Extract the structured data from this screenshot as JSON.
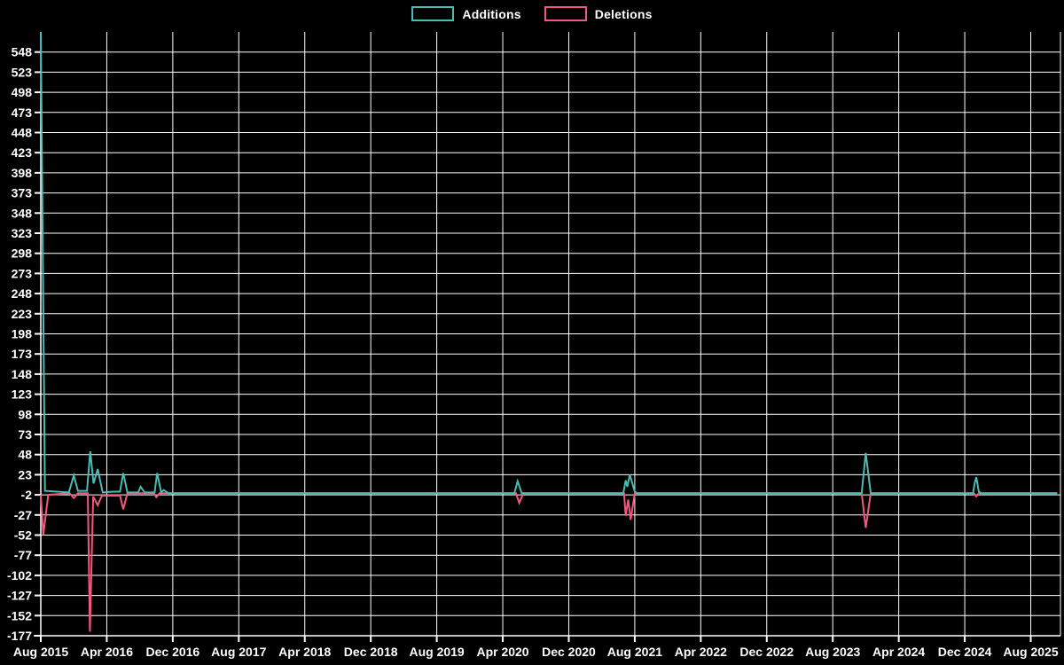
{
  "legend": {
    "items": [
      {
        "label": "Additions",
        "color": "#4BBCB4"
      },
      {
        "label": "Deletions",
        "color": "#F2587F"
      }
    ]
  },
  "colors": {
    "background": "#000000",
    "grid": "#ffffff",
    "axis_text": "#ffffff",
    "additions": "#4BBCB4",
    "deletions": "#F2587F"
  },
  "chart_data": {
    "type": "line",
    "title": "",
    "xlabel": "",
    "ylabel": "",
    "grid": true,
    "legend_position": "top-center",
    "y_axis": {
      "min": -177,
      "max": 573,
      "tick_step": 25,
      "tick_labels": [
        "548",
        "523",
        "498",
        "473",
        "448",
        "423",
        "398",
        "373",
        "348",
        "323",
        "298",
        "273",
        "248",
        "223",
        "198",
        "173",
        "148",
        "123",
        "98",
        "73",
        "48",
        "23",
        "-2",
        "-27",
        "-52",
        "-77",
        "-102",
        "-127",
        "-152",
        "-177"
      ],
      "tick_values": [
        548,
        523,
        498,
        473,
        448,
        423,
        398,
        373,
        348,
        323,
        298,
        273,
        248,
        223,
        198,
        173,
        148,
        123,
        98,
        73,
        48,
        23,
        -2,
        -27,
        -52,
        -77,
        -102,
        -127,
        -152,
        -177
      ]
    },
    "x_axis": {
      "tick_labels": [
        "Aug 2015",
        "Apr 2016",
        "Dec 2016",
        "Aug 2017",
        "Apr 2018",
        "Dec 2018",
        "Aug 2019",
        "Apr 2020",
        "Dec 2020",
        "Aug 2021",
        "Apr 2022",
        "Dec 2022",
        "Aug 2023",
        "Apr 2024",
        "Dec 2024",
        "Aug 2025"
      ],
      "months_per_tick": 8,
      "min_month": 0,
      "max_month": 123.6
    },
    "series": [
      {
        "name": "Additions",
        "color": "#4BBCB4",
        "points": [
          [
            0,
            573
          ],
          [
            0.5,
            3
          ],
          [
            3.4,
            1
          ],
          [
            4,
            22
          ],
          [
            4.5,
            3
          ],
          [
            5.6,
            3
          ],
          [
            6,
            52
          ],
          [
            6.4,
            12
          ],
          [
            6.9,
            30
          ],
          [
            7.5,
            1
          ],
          [
            8.8,
            2
          ],
          [
            9.6,
            2
          ],
          [
            10,
            25
          ],
          [
            10.5,
            1
          ],
          [
            11.8,
            1
          ],
          [
            12.1,
            8
          ],
          [
            12.6,
            1
          ],
          [
            13.8,
            1
          ],
          [
            14.1,
            25
          ],
          [
            14.6,
            1
          ],
          [
            14.9,
            4
          ],
          [
            15.5,
            0
          ],
          [
            57.4,
            0
          ],
          [
            57.8,
            15
          ],
          [
            58.3,
            0
          ],
          [
            70.6,
            0
          ],
          [
            70.9,
            16
          ],
          [
            71.1,
            8
          ],
          [
            71.4,
            23
          ],
          [
            72,
            2
          ],
          [
            72.3,
            0
          ],
          [
            99.5,
            0
          ],
          [
            100,
            50
          ],
          [
            100.6,
            0
          ],
          [
            113,
            0
          ],
          [
            113.2,
            12
          ],
          [
            113.4,
            20
          ],
          [
            113.7,
            2
          ],
          [
            114,
            0
          ],
          [
            123.2,
            0
          ]
        ]
      },
      {
        "name": "Deletions",
        "color": "#F2587F",
        "points": [
          [
            0,
            -2
          ],
          [
            0.3,
            -52
          ],
          [
            0.9,
            -2
          ],
          [
            3.5,
            0
          ],
          [
            4,
            -6
          ],
          [
            4.5,
            0
          ],
          [
            5.7,
            0
          ],
          [
            5.95,
            -172
          ],
          [
            6.35,
            -4
          ],
          [
            6.9,
            -15
          ],
          [
            7.4,
            -3
          ],
          [
            8.5,
            -3
          ],
          [
            9.6,
            -3
          ],
          [
            10,
            -20
          ],
          [
            10.5,
            0
          ],
          [
            13.7,
            0
          ],
          [
            14,
            -5
          ],
          [
            14.4,
            0
          ],
          [
            57.6,
            0
          ],
          [
            58,
            -12
          ],
          [
            58.5,
            0
          ],
          [
            70.7,
            0
          ],
          [
            70.9,
            -28
          ],
          [
            71.2,
            -8
          ],
          [
            71.5,
            -33
          ],
          [
            72,
            0
          ],
          [
            99.5,
            0
          ],
          [
            100,
            -43
          ],
          [
            100.6,
            0
          ],
          [
            113.1,
            0
          ],
          [
            113.4,
            -4
          ],
          [
            113.7,
            0
          ],
          [
            123.2,
            0
          ]
        ]
      }
    ]
  }
}
